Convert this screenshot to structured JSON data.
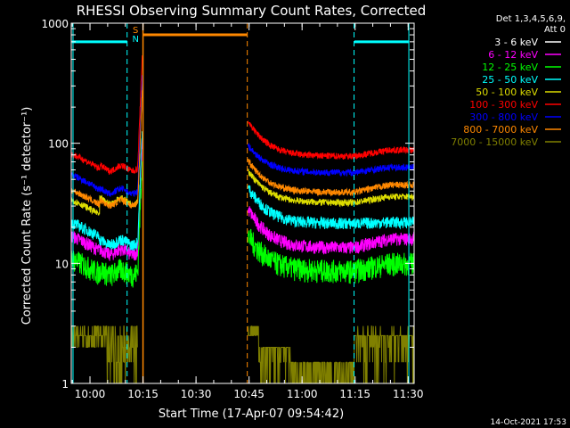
{
  "chart_data": {
    "type": "line",
    "title": "RHESSI Observing Summary Count Rates, Corrected",
    "xlabel": "Start Time (17-Apr-07 09:54:42)",
    "ylabel": "Corrected Count Rate (s⁻¹ detector⁻¹)",
    "y_scale": "log",
    "ylim": [
      1,
      1000
    ],
    "xlim_minutes": [
      0,
      97
    ],
    "y_ticks": [
      {
        "value": 1,
        "label": "1"
      },
      {
        "value": 10,
        "label": "10"
      },
      {
        "value": 100,
        "label": "100"
      },
      {
        "value": 1000,
        "label": "1000"
      }
    ],
    "x_ticks": [
      {
        "minute": 5.3,
        "label": "10:00"
      },
      {
        "minute": 20.3,
        "label": "10:15"
      },
      {
        "minute": 35.3,
        "label": "10:30"
      },
      {
        "minute": 50.3,
        "label": "10:45"
      },
      {
        "minute": 65.3,
        "label": "11:00"
      },
      {
        "minute": 80.3,
        "label": "11:15"
      },
      {
        "minute": 95.3,
        "label": "11:30"
      }
    ],
    "legend_header": [
      "Det 1,3,4,5,6,9,",
      "Att 0"
    ],
    "legend_position": "top-right",
    "series": [
      {
        "name": "3 - 6 keV",
        "color": "#000000",
        "shape": {
          "base": 6.6,
          "pre": 3.5,
          "drop": 0.85,
          "fall": 12,
          "post": 3.8,
          "late": 6.3,
          "noise": 0.25
        }
      },
      {
        "name": "6 - 12 keV",
        "color": "#ff00ff",
        "shape": {
          "base": 17,
          "pre": 12.5,
          "drop": 0.7,
          "fall": 30,
          "post": 13.5,
          "late": 16,
          "noise": 0.08
        }
      },
      {
        "name": "12 - 25 keV",
        "color": "#00ff00",
        "shape": {
          "base": 11,
          "pre": 8.5,
          "drop": 0.7,
          "fall": 18,
          "post": 8.7,
          "late": 10,
          "noise": 0.14
        }
      },
      {
        "name": "25 - 50 keV",
        "color": "#00ffff",
        "shape": {
          "base": 22,
          "pre": 15,
          "drop": 0.75,
          "fall": 45,
          "post": 21.5,
          "late": 22,
          "noise": 0.07
        }
      },
      {
        "name": "50 - 100 keV",
        "color": "#dddd00",
        "shape": {
          "base": 34,
          "pre": 33,
          "drop": 0.75,
          "fall": 62,
          "post": 32,
          "late": 36,
          "noise": 0.04
        }
      },
      {
        "name": "100 - 300 keV",
        "color": "#ff0000",
        "shape": {
          "base": 82,
          "pre": 62,
          "drop": 0.8,
          "fall": 160,
          "post": 78,
          "late": 88,
          "noise": 0.04
        }
      },
      {
        "name": "300 - 800 keV",
        "color": "#0000ff",
        "shape": {
          "base": 55,
          "pre": 40,
          "drop": 0.8,
          "fall": 100,
          "post": 57,
          "late": 63,
          "noise": 0.04
        }
      },
      {
        "name": "800 - 7000 keV",
        "color": "#ff8800",
        "shape": {
          "base": 41,
          "pre": 32,
          "drop": 0.75,
          "fall": 75,
          "post": 39,
          "late": 45,
          "noise": 0.04
        }
      },
      {
        "name": "7000 - 15000 keV",
        "color": "#808000",
        "shape": {
          "base": 2.5,
          "pre": 2.0,
          "drop": 0.0,
          "fall": 2.6,
          "post": 1.5,
          "late": 2.3,
          "noise": 0.0
        }
      }
    ],
    "segments": {
      "data_start_min": 0,
      "sun_min": 18.8,
      "flare_start_min": 20.1,
      "gap_end_min": 49.6,
      "end_min": 97
    },
    "saa_markers": {
      "cyan_lines_min": [
        0.5,
        95.5
      ],
      "cyan_dashed_min": [
        15.8,
        80.0
      ],
      "orange_solid_min": [
        20.3
      ],
      "orange_dashed_min": [
        49.8
      ]
    },
    "flags": [
      {
        "label": "SN",
        "color": "#00ffff",
        "from_min": 0.2,
        "to_min": 15.8,
        "level": 700
      },
      {
        "label": "SN",
        "color": "#00ffff",
        "from_min": 80.1,
        "to_min": 95.5,
        "level": 700
      },
      {
        "label": "",
        "color": "#ff8800",
        "from_min": 20.3,
        "to_min": 49.7,
        "level": 800
      }
    ],
    "flag_letters": [
      {
        "text": "S",
        "color": "#ff8800"
      },
      {
        "text": "N",
        "color": "#00ffff"
      }
    ],
    "timestamp": "14-Oct-2021 17:53"
  }
}
